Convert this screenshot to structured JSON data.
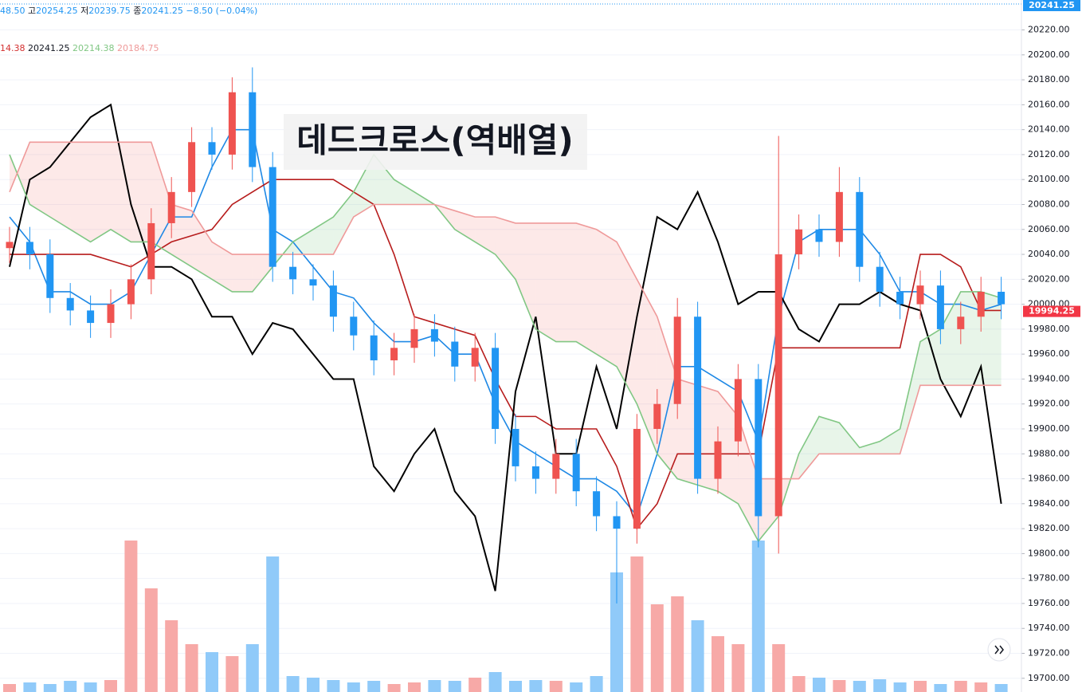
{
  "chart_data": {
    "type": "candlestick",
    "title": "데드크로스(역배열)",
    "header": {
      "partial_value": "48.50",
      "high_label": "고",
      "high": "20254.25",
      "low_label": "저",
      "low": "20239.75",
      "close_label": "종",
      "close": "20241.25",
      "change": "−8.50 (−0.04%)"
    },
    "indicator_values": [
      "14.38",
      "20241.25",
      "20214.38",
      "20184.75"
    ],
    "last_price_label": "20241.25",
    "current_price_label": "19994.25",
    "ylim": [
      19689,
      20244
    ],
    "yticks": [
      {
        "value": 19700,
        "label": "19700.00"
      },
      {
        "value": 19720,
        "label": "19720.00"
      },
      {
        "value": 19740,
        "label": "19740.00"
      },
      {
        "value": 19760,
        "label": "19760.00"
      },
      {
        "value": 19780,
        "label": "19780.00"
      },
      {
        "value": 19800,
        "label": "19800.00"
      },
      {
        "value": 19820,
        "label": "19820.00"
      },
      {
        "value": 19840,
        "label": "19840.00"
      },
      {
        "value": 19860,
        "label": "19860.00"
      },
      {
        "value": 19880,
        "label": "19880.00"
      },
      {
        "value": 19900,
        "label": "19900.00"
      },
      {
        "value": 19920,
        "label": "19920.00"
      },
      {
        "value": 19940,
        "label": "19940.00"
      },
      {
        "value": 19960,
        "label": "19960.00"
      },
      {
        "value": 19980,
        "label": "19980.00"
      },
      {
        "value": 20000,
        "label": "20000.00"
      },
      {
        "value": 20020,
        "label": "20020.00"
      },
      {
        "value": 20040,
        "label": "20040.00"
      },
      {
        "value": 20060,
        "label": "20060.00"
      },
      {
        "value": 20080,
        "label": "20080.00"
      },
      {
        "value": 20100,
        "label": "20100.00"
      },
      {
        "value": 20120,
        "label": "20120.00"
      },
      {
        "value": 20140,
        "label": "20140.00"
      },
      {
        "value": 20160,
        "label": "20160.00"
      },
      {
        "value": 20180,
        "label": "20180.00"
      },
      {
        "value": 20200,
        "label": "20200.00"
      },
      {
        "value": 20220,
        "label": "20220.00"
      }
    ],
    "grid": true,
    "up_color": "#ef5350",
    "down_color": "#2196f3",
    "open": [
      20045,
      20050,
      20040,
      20005,
      19995,
      19985,
      20000,
      20020,
      20065,
      20090,
      20130,
      20120,
      20170,
      20110,
      20030,
      20020,
      20015,
      19990,
      19975,
      19955,
      19965,
      19980,
      19970,
      19950,
      19965,
      19900,
      19870,
      19860,
      19880,
      19850,
      19830,
      19820,
      19900,
      19920,
      19990,
      19860,
      19890,
      19940,
      19830,
      20040,
      20060,
      20050,
      20090,
      20030,
      20010,
      20000,
      20015,
      19980,
      19990,
      20010
    ],
    "high": [
      20062,
      20062,
      20052,
      20017,
      20007,
      20012,
      20032,
      20077,
      20102,
      20142,
      20142,
      20182,
      20190,
      20122,
      20042,
      20032,
      20027,
      20002,
      19987,
      19977,
      19992,
      19992,
      19982,
      19977,
      19977,
      19912,
      19882,
      19892,
      19892,
      19862,
      19842,
      19912,
      19932,
      20005,
      20002,
      19902,
      19952,
      19952,
      20135,
      20072,
      20072,
      20110,
      20102,
      20042,
      20022,
      20027,
      20027,
      20002,
      20022,
      20022
    ],
    "low": [
      20033,
      20028,
      19993,
      19983,
      19973,
      19973,
      19988,
      20008,
      20053,
      20078,
      20108,
      20108,
      20098,
      20018,
      20008,
      20003,
      19978,
      19963,
      19943,
      19943,
      19953,
      19958,
      19938,
      19938,
      19888,
      19858,
      19848,
      19848,
      19838,
      19818,
      19760,
      19808,
      19888,
      19908,
      19848,
      19848,
      19878,
      19805,
      19800,
      20028,
      20038,
      20038,
      20018,
      19998,
      19988,
      19988,
      19968,
      19968,
      19978,
      19988
    ],
    "close": [
      20050,
      20040,
      20005,
      19995,
      19985,
      20000,
      20020,
      20065,
      20090,
      20130,
      20120,
      20170,
      20110,
      20030,
      20020,
      20015,
      19990,
      19975,
      19955,
      19965,
      19980,
      19970,
      19950,
      19965,
      19900,
      19870,
      19860,
      19880,
      19850,
      19830,
      19820,
      19900,
      19920,
      19990,
      19860,
      19890,
      19940,
      19830,
      20040,
      20060,
      20050,
      20090,
      20030,
      20010,
      20000,
      20015,
      19980,
      19990,
      20010,
      20000
    ],
    "volume": [
      10,
      12,
      10,
      14,
      12,
      15,
      190,
      130,
      90,
      60,
      50,
      45,
      60,
      170,
      20,
      18,
      15,
      12,
      14,
      10,
      12,
      15,
      14,
      18,
      25,
      14,
      15,
      14,
      12,
      20,
      150,
      170,
      110,
      120,
      90,
      70,
      60,
      190,
      60,
      20,
      18,
      15,
      14,
      16,
      12,
      14,
      10,
      14,
      12,
      10
    ],
    "series": [
      {
        "color": "#1e88e5",
        "values": [
          20070,
          20050,
          20010,
          20010,
          20000,
          20000,
          20010,
          20040,
          20070,
          20070,
          20110,
          20140,
          20140,
          20060,
          20050,
          20030,
          20010,
          20005,
          19985,
          19970,
          19970,
          19975,
          19960,
          19960,
          19920,
          19890,
          19880,
          19870,
          19860,
          19860,
          19850,
          19830,
          19880,
          19950,
          19950,
          19940,
          19930,
          19890,
          19990,
          20050,
          20060,
          20060,
          20060,
          20040,
          20010,
          20010,
          20000,
          20000,
          19995,
          20000
        ]
      },
      {
        "color": "#b71c1c",
        "values": [
          20040,
          20040,
          20040,
          20040,
          20040,
          20035,
          20030,
          20040,
          20050,
          20055,
          20060,
          20080,
          20090,
          20100,
          20100,
          20100,
          20100,
          20090,
          20080,
          20040,
          19990,
          19985,
          19980,
          19975,
          19940,
          19910,
          19910,
          19900,
          19900,
          19900,
          19870,
          19820,
          19840,
          19880,
          19880,
          19880,
          19880,
          19880,
          19965,
          19965,
          19965,
          19965,
          19965,
          19965,
          19965,
          20040,
          20040,
          20030,
          19995,
          19995
        ]
      },
      {
        "color": "#000000",
        "values": [
          20030,
          20100,
          20110,
          20130,
          20150,
          20160,
          20080,
          20030,
          20030,
          20020,
          19990,
          19990,
          19960,
          19985,
          19980,
          19960,
          19940,
          19940,
          19870,
          19850,
          19880,
          19900,
          19850,
          19830,
          19770,
          19930,
          19990,
          19880,
          19880,
          19950,
          19900,
          19990,
          20070,
          20060,
          20090,
          20050,
          20000,
          20010,
          20010,
          19980,
          19970,
          20000,
          20000,
          20010,
          20000,
          19995,
          19940,
          19910,
          19950,
          19840
        ]
      },
      {
        "color": "#81c784",
        "values": [
          20120,
          20080,
          20070,
          20060,
          20050,
          20060,
          20050,
          20050,
          20040,
          20030,
          20020,
          20010,
          20010,
          20030,
          20050,
          20060,
          20070,
          20090,
          20120,
          20100,
          20090,
          20080,
          20060,
          20050,
          20040,
          20020,
          19980,
          19970,
          19970,
          19960,
          19950,
          19920,
          19880,
          19860,
          19855,
          19850,
          19840,
          19810,
          19830,
          19880,
          19910,
          19905,
          19885,
          19890,
          19900,
          19970,
          19980,
          20010,
          20010,
          20005
        ]
      },
      {
        "color": "#ef9a9a",
        "values": [
          20090,
          20130,
          20130,
          20130,
          20130,
          20130,
          20130,
          20130,
          20080,
          20075,
          20050,
          20040,
          20040,
          20040,
          20040,
          20040,
          20040,
          20070,
          20080,
          20080,
          20080,
          20080,
          20075,
          20070,
          20070,
          20065,
          20065,
          20065,
          20065,
          20060,
          20050,
          20020,
          19990,
          19940,
          19935,
          19930,
          19910,
          19860,
          19860,
          19860,
          19880,
          19880,
          19880,
          19880,
          19880,
          19935,
          19935,
          19935,
          19935,
          19935
        ]
      }
    ]
  }
}
